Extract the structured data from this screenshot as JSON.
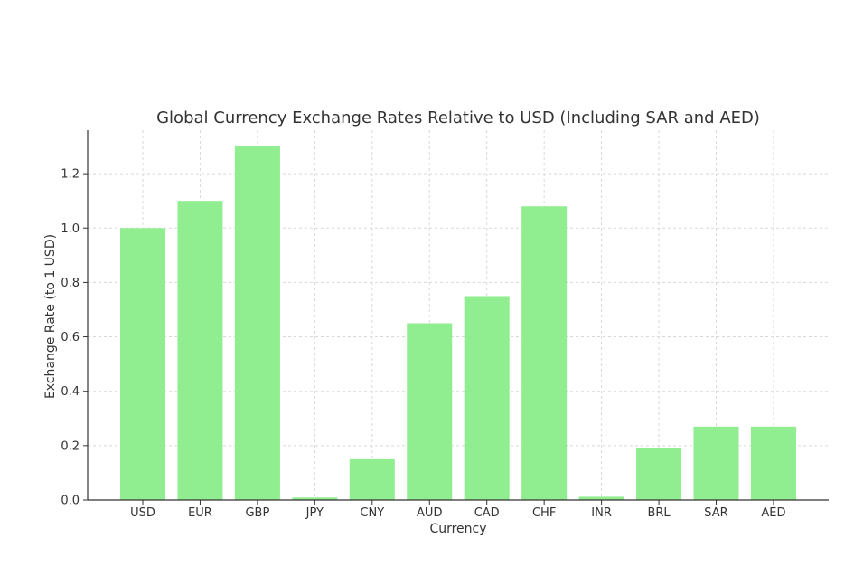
{
  "chart_data": {
    "type": "bar",
    "title": "Global Currency Exchange Rates Relative to USD (Including SAR and AED)",
    "xlabel": "Currency",
    "ylabel": "Exchange Rate (to 1 USD)",
    "categories": [
      "USD",
      "EUR",
      "GBP",
      "JPY",
      "CNY",
      "AUD",
      "CAD",
      "CHF",
      "INR",
      "BRL",
      "SAR",
      "AED"
    ],
    "values": [
      1.0,
      1.1,
      1.3,
      0.0091,
      0.15,
      0.65,
      0.75,
      1.08,
      0.012,
      0.19,
      0.27,
      0.27
    ],
    "ylim": [
      0,
      1.36
    ],
    "yticks": [
      0.0,
      0.2,
      0.4,
      0.6,
      0.8,
      1.0,
      1.2
    ],
    "ytick_labels": [
      "0.0",
      "0.2",
      "0.4",
      "0.6",
      "0.8",
      "1.0",
      "1.2"
    ],
    "grid": true,
    "bar_color": "#90ee90"
  }
}
